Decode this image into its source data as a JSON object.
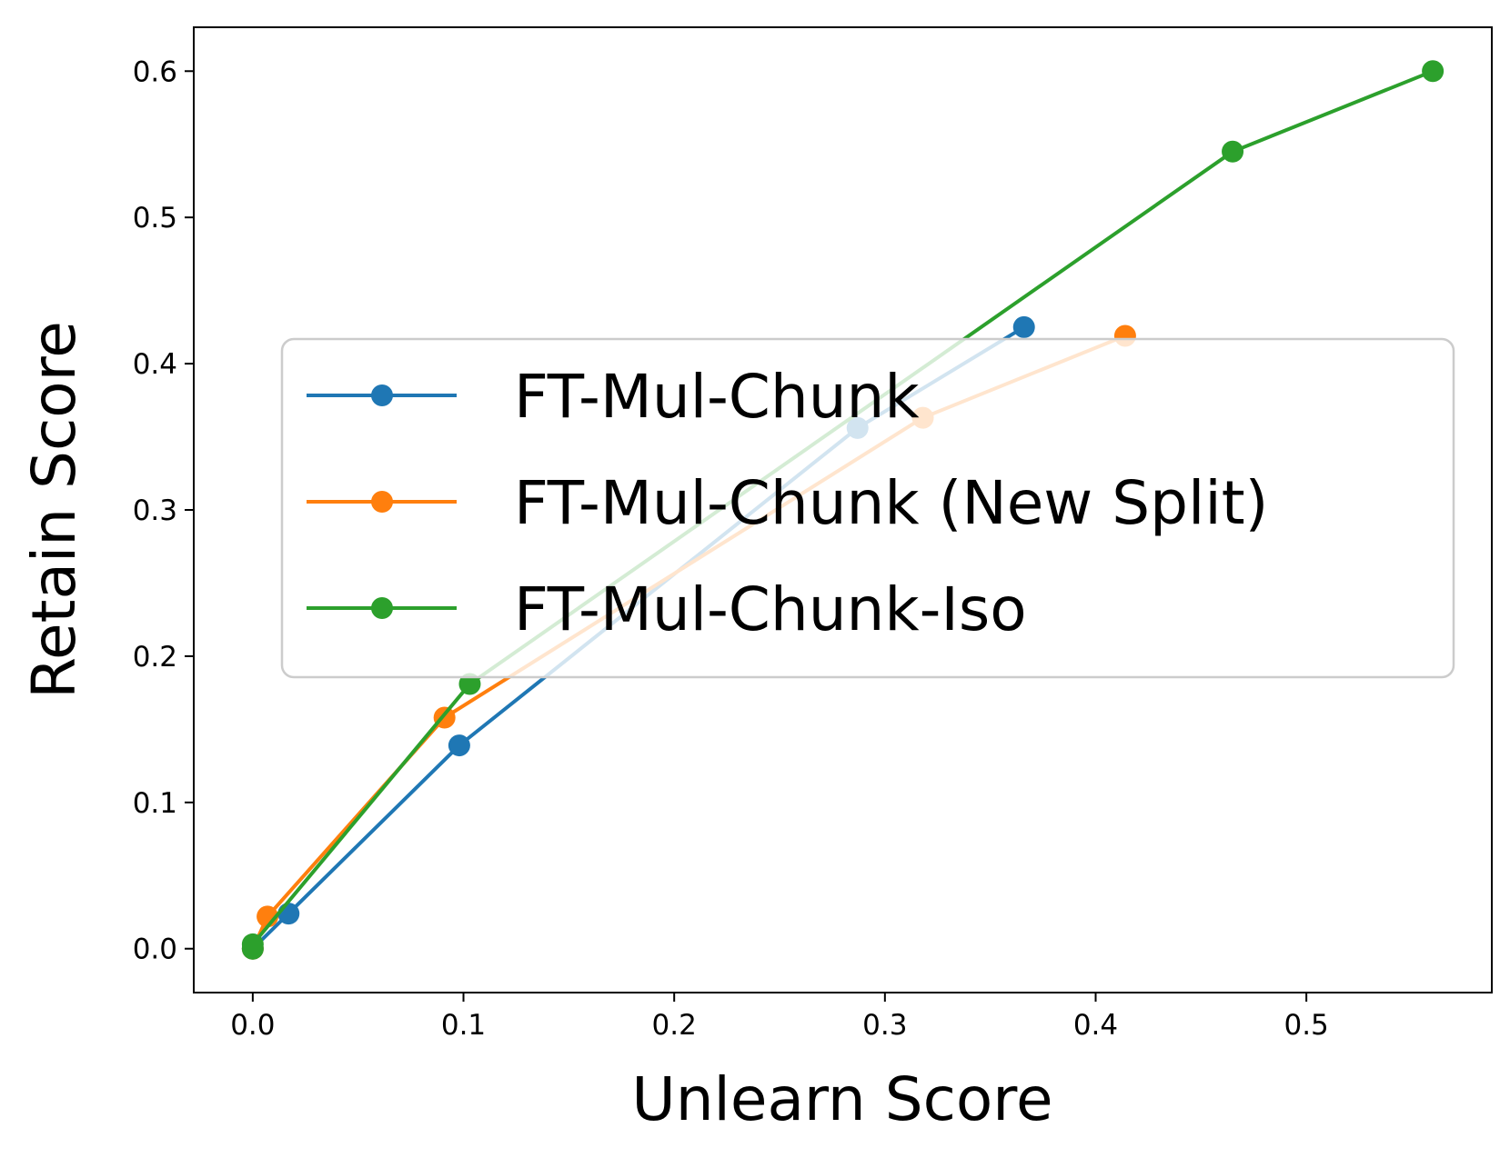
{
  "chart_data": {
    "type": "line",
    "title": "",
    "xlabel": "Unlearn Score",
    "ylabel": "Retain Score",
    "xlim": [
      -0.028,
      0.588
    ],
    "ylim": [
      -0.03,
      0.63
    ],
    "xticks": [
      0.0,
      0.1,
      0.2,
      0.3,
      0.4,
      0.5
    ],
    "yticks": [
      0.0,
      0.1,
      0.2,
      0.3,
      0.4,
      0.5,
      0.6
    ],
    "xtick_labels": [
      "0.0",
      "0.1",
      "0.2",
      "0.3",
      "0.4",
      "0.5"
    ],
    "ytick_labels": [
      "0.0",
      "0.1",
      "0.2",
      "0.3",
      "0.4",
      "0.5",
      "0.6"
    ],
    "grid": false,
    "legend_position": "center-right",
    "series": [
      {
        "name": "FT-Mul-Chunk",
        "color": "#1f77b4",
        "points": [
          [
            0.0,
            0.0
          ],
          [
            0.017,
            0.024
          ],
          [
            0.098,
            0.139
          ],
          [
            0.287,
            0.356
          ],
          [
            0.366,
            0.425
          ]
        ]
      },
      {
        "name": "FT-Mul-Chunk (New Split)",
        "color": "#ff7f0e",
        "points": [
          [
            0.0,
            0.0
          ],
          [
            0.007,
            0.022
          ],
          [
            0.091,
            0.158
          ],
          [
            0.318,
            0.363
          ],
          [
            0.414,
            0.419
          ]
        ]
      },
      {
        "name": "FT-Mul-Chunk-Iso",
        "color": "#2ca02c",
        "points": [
          [
            0.0,
            0.0
          ],
          [
            0.0,
            0.003
          ],
          [
            0.103,
            0.181
          ],
          [
            0.465,
            0.545
          ],
          [
            0.56,
            0.6
          ]
        ]
      }
    ]
  }
}
